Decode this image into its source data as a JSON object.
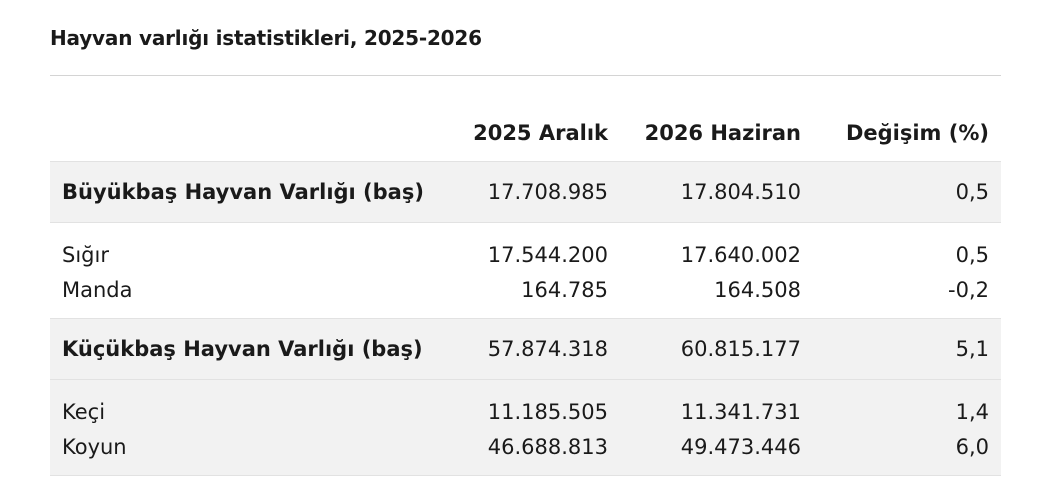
{
  "title": "Hayvan varlığı istatistikleri, 2025-2026",
  "columns": [
    "",
    "2025 Aralık",
    "2026 Haziran",
    "Değişim (%)"
  ],
  "groups": [
    {
      "total": {
        "label": "Büyükbaş Hayvan Varlığı (baş)",
        "v2025": "17.708.985",
        "v2026": "17.804.510",
        "change": "0,5"
      },
      "rows": [
        {
          "label": "Sığır",
          "v2025": "17.544.200",
          "v2026": "17.640.002",
          "change": "0,5"
        },
        {
          "label": "Manda",
          "v2025": "164.785",
          "v2026": "164.508",
          "change": "-0,2"
        }
      ]
    },
    {
      "total": {
        "label": "Küçükbaş Hayvan Varlığı (baş)",
        "v2025": "57.874.318",
        "v2026": "60.815.177",
        "change": "5,1"
      },
      "rows": [
        {
          "label": "Keçi",
          "v2025": "11.185.505",
          "v2026": "11.341.731",
          "change": "1,4"
        },
        {
          "label": "Koyun",
          "v2025": "46.688.813",
          "v2026": "49.473.446",
          "change": "6,0"
        }
      ]
    }
  ]
}
